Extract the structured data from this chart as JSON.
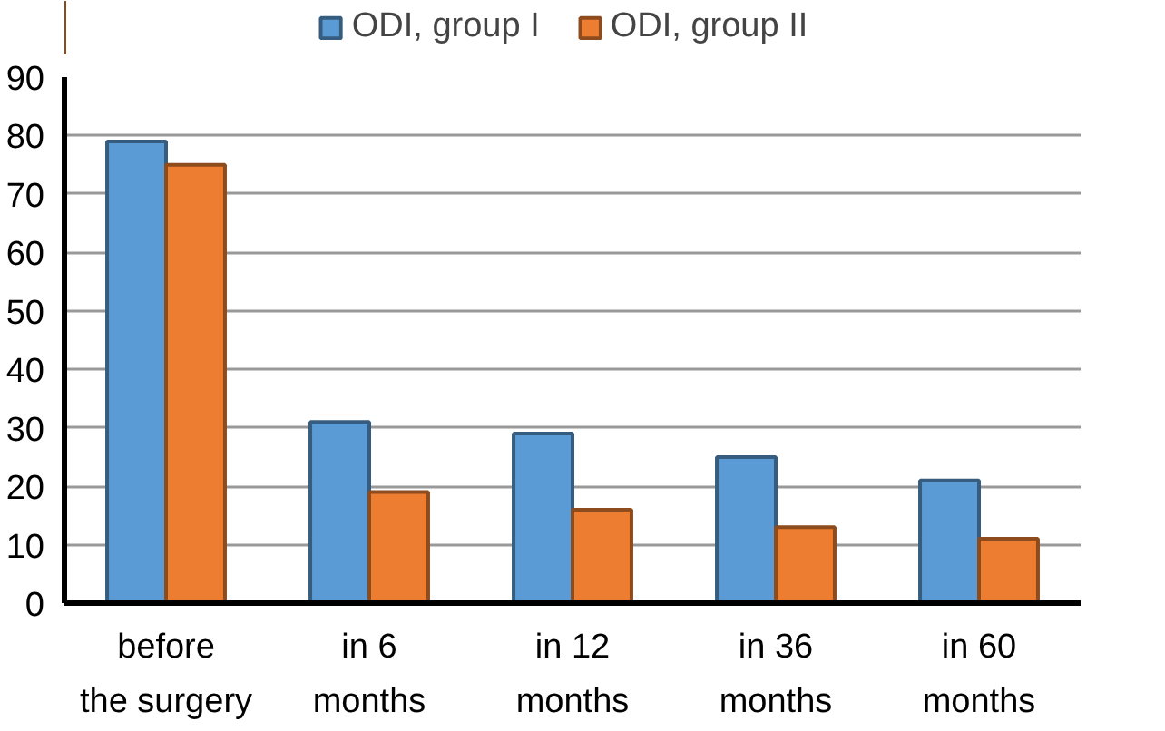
{
  "chart_data": {
    "type": "bar",
    "categories": [
      "before\nthe surgery",
      "in 6\nmonths",
      "in 12\nmonths",
      "in 36\nmonths",
      "in 60\nmonths"
    ],
    "series": [
      {
        "name": "ODI, group I",
        "color": "#5b9bd5",
        "values": [
          79,
          31,
          29,
          25,
          21
        ]
      },
      {
        "name": "ODI, group II",
        "color": "#ed7d31",
        "values": [
          75,
          19,
          16,
          13,
          11
        ]
      }
    ],
    "ylim": [
      0,
      90
    ],
    "yticks": [
      0,
      10,
      20,
      30,
      40,
      50,
      60,
      70,
      80,
      90
    ],
    "grid": "y",
    "legend": "top"
  }
}
